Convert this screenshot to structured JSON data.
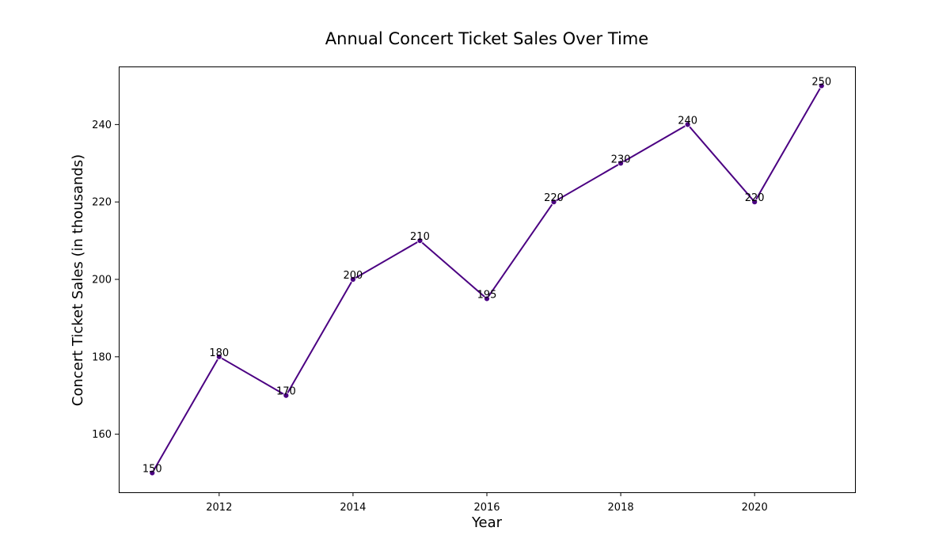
{
  "chart_data": {
    "type": "line",
    "title": "Annual Concert Ticket Sales Over Time",
    "xlabel": "Year",
    "ylabel": "Concert Ticket Sales (in thousands)",
    "x": [
      2011,
      2012,
      2013,
      2014,
      2015,
      2016,
      2017,
      2018,
      2019,
      2020,
      2021
    ],
    "series": [
      {
        "values": [
          150,
          180,
          170,
          200,
          210,
          195,
          220,
          230,
          240,
          220,
          250
        ],
        "color": "#4b0082"
      }
    ],
    "data_labels": [
      "150",
      "180",
      "170",
      "200",
      "210",
      "195",
      "220",
      "230",
      "240",
      "220",
      "250"
    ],
    "xticks": [
      2012,
      2014,
      2016,
      2018,
      2020
    ],
    "xtick_labels": [
      "2012",
      "2014",
      "2016",
      "2018",
      "2020"
    ],
    "yticks": [
      160,
      180,
      200,
      220,
      240
    ],
    "ytick_labels": [
      "160",
      "180",
      "200",
      "220",
      "240"
    ],
    "xlim": [
      2010.5,
      2021.5
    ],
    "ylim": [
      145,
      255
    ],
    "grid": false,
    "marker": "circle"
  }
}
